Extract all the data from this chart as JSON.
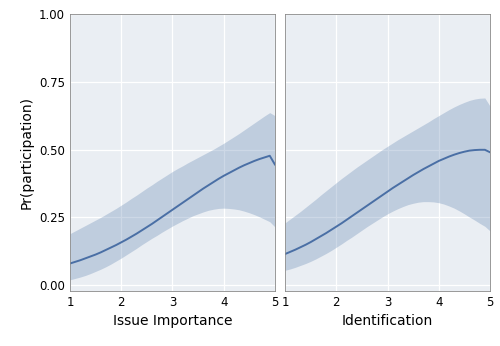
{
  "panel1": {
    "xlabel": "Issue Importance",
    "x": [
      1.0,
      1.1,
      1.2,
      1.3,
      1.4,
      1.5,
      1.6,
      1.7,
      1.8,
      1.9,
      2.0,
      2.1,
      2.2,
      2.3,
      2.4,
      2.5,
      2.6,
      2.7,
      2.8,
      2.9,
      3.0,
      3.1,
      3.2,
      3.3,
      3.4,
      3.5,
      3.6,
      3.7,
      3.8,
      3.9,
      4.0,
      4.1,
      4.2,
      4.3,
      4.4,
      4.5,
      4.6,
      4.7,
      4.8,
      4.9,
      5.0
    ],
    "y": [
      0.08,
      0.086,
      0.092,
      0.099,
      0.106,
      0.113,
      0.121,
      0.13,
      0.139,
      0.148,
      0.158,
      0.168,
      0.179,
      0.19,
      0.202,
      0.214,
      0.226,
      0.239,
      0.252,
      0.265,
      0.278,
      0.291,
      0.304,
      0.317,
      0.33,
      0.343,
      0.356,
      0.368,
      0.38,
      0.392,
      0.403,
      0.413,
      0.423,
      0.433,
      0.442,
      0.45,
      0.458,
      0.465,
      0.471,
      0.477,
      0.445
    ],
    "y_lo": [
      0.02,
      0.025,
      0.03,
      0.036,
      0.043,
      0.051,
      0.059,
      0.068,
      0.078,
      0.089,
      0.1,
      0.112,
      0.124,
      0.136,
      0.149,
      0.161,
      0.173,
      0.184,
      0.196,
      0.207,
      0.218,
      0.228,
      0.238,
      0.247,
      0.256,
      0.263,
      0.27,
      0.276,
      0.28,
      0.283,
      0.284,
      0.283,
      0.281,
      0.278,
      0.273,
      0.267,
      0.26,
      0.252,
      0.243,
      0.234,
      0.215
    ],
    "y_hi": [
      0.19,
      0.2,
      0.21,
      0.22,
      0.23,
      0.24,
      0.25,
      0.261,
      0.272,
      0.283,
      0.295,
      0.307,
      0.32,
      0.332,
      0.345,
      0.358,
      0.37,
      0.383,
      0.395,
      0.407,
      0.419,
      0.43,
      0.44,
      0.451,
      0.461,
      0.471,
      0.481,
      0.491,
      0.501,
      0.512,
      0.523,
      0.535,
      0.547,
      0.559,
      0.572,
      0.585,
      0.598,
      0.611,
      0.624,
      0.636,
      0.625
    ]
  },
  "panel2": {
    "xlabel": "Identification",
    "x": [
      1.0,
      1.1,
      1.2,
      1.3,
      1.4,
      1.5,
      1.6,
      1.7,
      1.8,
      1.9,
      2.0,
      2.1,
      2.2,
      2.3,
      2.4,
      2.5,
      2.6,
      2.7,
      2.8,
      2.9,
      3.0,
      3.1,
      3.2,
      3.3,
      3.4,
      3.5,
      3.6,
      3.7,
      3.8,
      3.9,
      4.0,
      4.1,
      4.2,
      4.3,
      4.4,
      4.5,
      4.6,
      4.7,
      4.8,
      4.9,
      5.0
    ],
    "y": [
      0.115,
      0.123,
      0.131,
      0.14,
      0.149,
      0.159,
      0.17,
      0.181,
      0.192,
      0.204,
      0.216,
      0.228,
      0.241,
      0.254,
      0.267,
      0.28,
      0.293,
      0.306,
      0.319,
      0.332,
      0.345,
      0.358,
      0.37,
      0.382,
      0.394,
      0.406,
      0.417,
      0.428,
      0.438,
      0.448,
      0.458,
      0.466,
      0.474,
      0.481,
      0.487,
      0.492,
      0.496,
      0.498,
      0.499,
      0.499,
      0.49
    ],
    "y_lo": [
      0.055,
      0.06,
      0.066,
      0.073,
      0.08,
      0.088,
      0.097,
      0.107,
      0.117,
      0.128,
      0.14,
      0.152,
      0.165,
      0.177,
      0.19,
      0.203,
      0.216,
      0.228,
      0.24,
      0.252,
      0.263,
      0.273,
      0.282,
      0.29,
      0.297,
      0.302,
      0.306,
      0.308,
      0.308,
      0.307,
      0.304,
      0.299,
      0.292,
      0.284,
      0.274,
      0.263,
      0.251,
      0.24,
      0.228,
      0.217,
      0.2
    ],
    "y_hi": [
      0.23,
      0.244,
      0.258,
      0.272,
      0.287,
      0.302,
      0.317,
      0.333,
      0.348,
      0.363,
      0.378,
      0.393,
      0.407,
      0.421,
      0.435,
      0.448,
      0.461,
      0.474,
      0.487,
      0.5,
      0.512,
      0.524,
      0.536,
      0.547,
      0.558,
      0.569,
      0.58,
      0.591,
      0.602,
      0.614,
      0.625,
      0.636,
      0.647,
      0.657,
      0.666,
      0.674,
      0.681,
      0.686,
      0.689,
      0.69,
      0.66
    ]
  },
  "ylabel": "Pr(participation)",
  "ylim": [
    -0.02,
    1.0
  ],
  "yticks": [
    0.0,
    0.25,
    0.5,
    0.75,
    1.0
  ],
  "ytick_labels": [
    "0.00",
    "0.25",
    "0.50",
    "0.75",
    "1.00"
  ],
  "xticks": [
    1,
    2,
    3,
    4,
    5
  ],
  "xlim": [
    1.0,
    5.0
  ],
  "line_color": "#4a6fa5",
  "fill_color": "#7090b8",
  "fill_alpha": 0.35,
  "bg_color": "#eaeef3",
  "grid_color": "#ffffff",
  "line_width": 1.4,
  "tick_labelsize": 8.5,
  "xlabel_fontsize": 10,
  "ylabel_fontsize": 10
}
